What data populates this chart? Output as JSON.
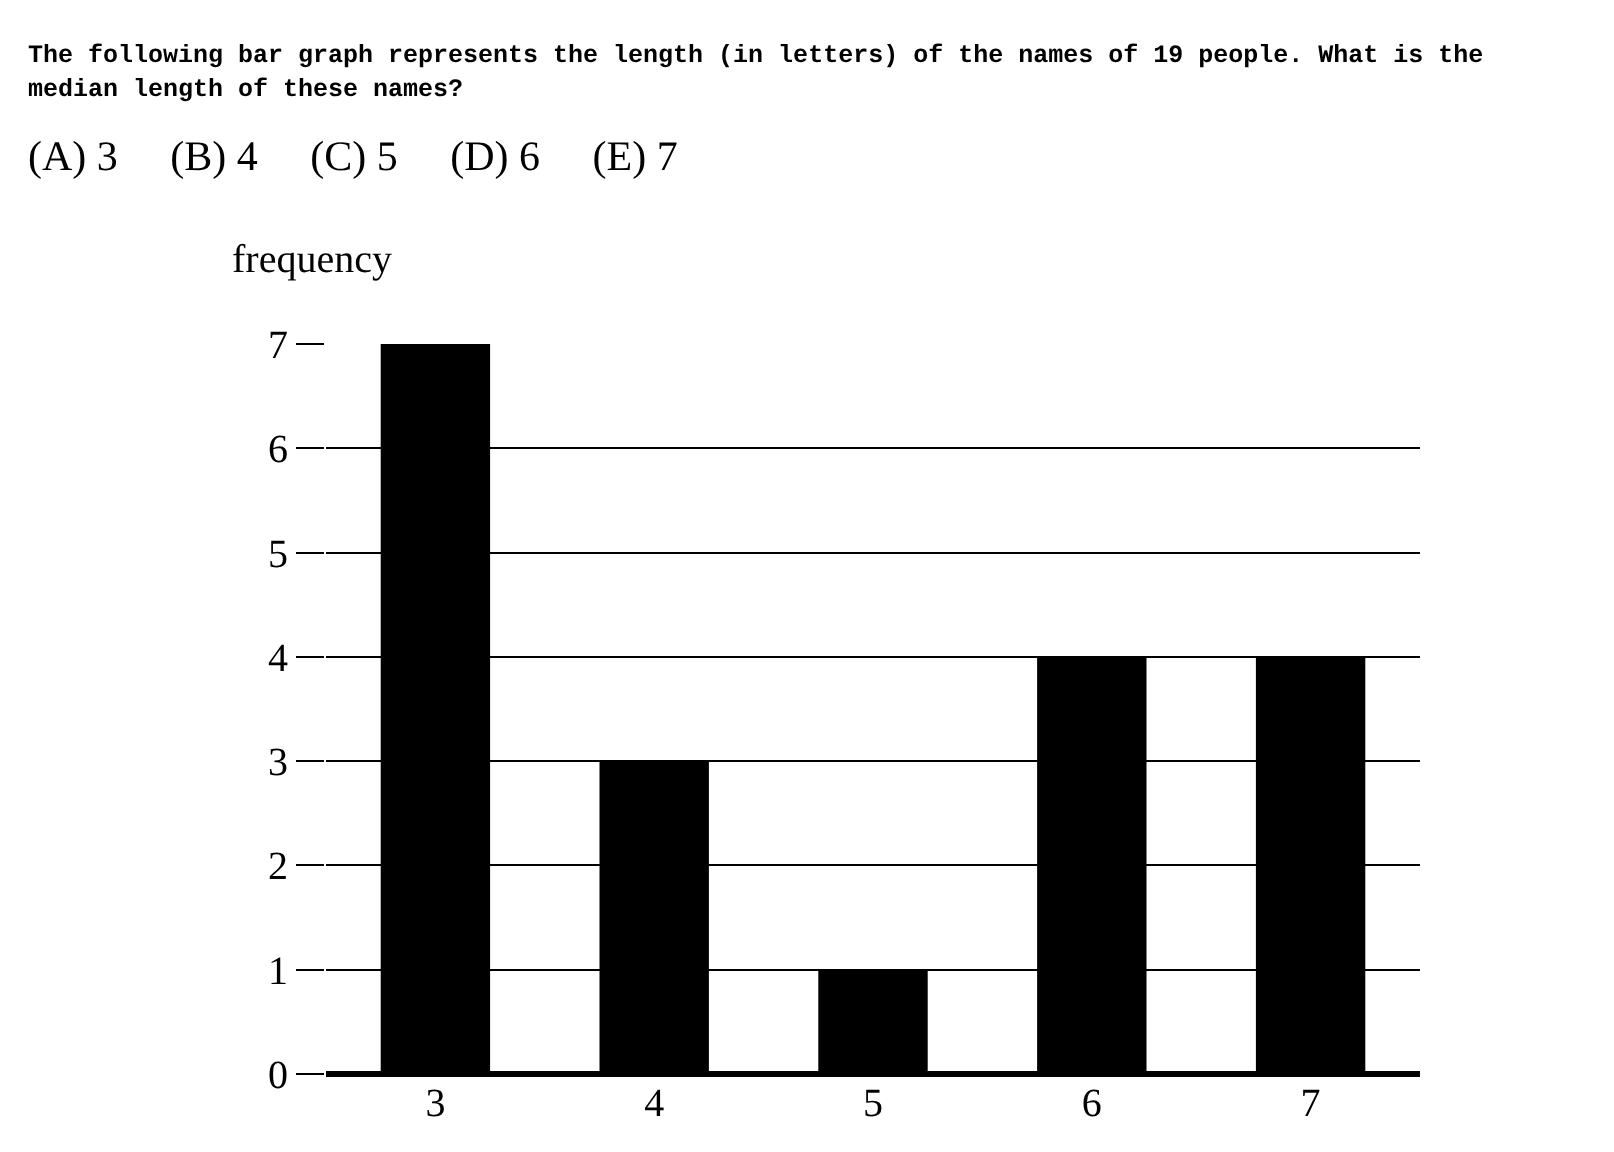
{
  "chart_data": {
    "type": "bar",
    "title": "The following bar graph represents the length (in letters) of the names of 19 people. What is the median length of these names?",
    "subtitle": "(A) 3     (B) 4     (C) 5     (D) 6     (E) 7",
    "ylabel": "frequency",
    "categories": [
      "3",
      "4",
      "5",
      "6",
      "7"
    ],
    "values": [
      7,
      3,
      1,
      4,
      4
    ],
    "color": "#000000",
    "ylim": [
      0,
      7
    ],
    "yticks": [
      0,
      1,
      2,
      3,
      4,
      5,
      6,
      7
    ],
    "grid": "y"
  }
}
